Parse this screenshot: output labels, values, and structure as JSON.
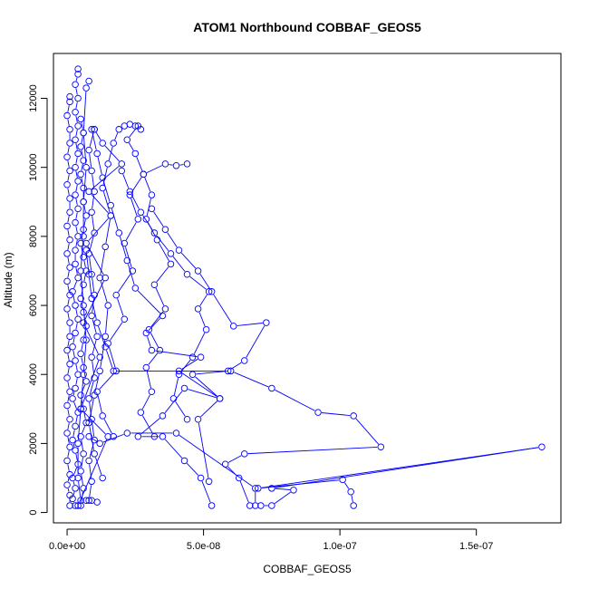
{
  "chart_data": {
    "type": "line",
    "title": "ATOM1 Northbound COBBAF_GEOS5",
    "xlabel": "COBBAF_GEOS5",
    "ylabel": "Altitude (m)",
    "xlim": [
      -5e-09,
      1.81e-07
    ],
    "ylim": [
      -300,
      13300
    ],
    "x_ticks": [
      {
        "value": 0,
        "label": "0.0e+00"
      },
      {
        "value": 5e-08,
        "label": "5.0e-08"
      },
      {
        "value": 1e-07,
        "label": "1.0e-07"
      },
      {
        "value": 1.5e-07,
        "label": "1.5e-07"
      }
    ],
    "y_ticks": [
      {
        "value": 0,
        "label": "0"
      },
      {
        "value": 2000,
        "label": "2000"
      },
      {
        "value": 4000,
        "label": "4000"
      },
      {
        "value": 6000,
        "label": "6000"
      },
      {
        "value": 8000,
        "label": "8000"
      },
      {
        "value": 10000,
        "label": "10000"
      },
      {
        "value": 12000,
        "label": "12000"
      }
    ],
    "grid": false,
    "marker": "open-circle",
    "color": "#0000ff",
    "series": [
      {
        "points": [
          [
            3e-09,
            200
          ],
          [
            2e-09,
            400
          ],
          [
            3e-09,
            700
          ],
          [
            2e-09,
            1000
          ],
          [
            4e-09,
            1400
          ],
          [
            3e-09,
            1800
          ],
          [
            2e-09,
            2100
          ],
          [
            3e-09,
            2500
          ],
          [
            4e-09,
            2900
          ],
          [
            2e-09,
            3300
          ],
          [
            3e-09,
            3600
          ],
          [
            4e-09,
            4000
          ],
          [
            3e-09,
            4400
          ],
          [
            2e-09,
            4800
          ],
          [
            3e-09,
            5200
          ],
          [
            4e-09,
            5600
          ],
          [
            3e-09,
            6000
          ],
          [
            2e-09,
            6400
          ],
          [
            4e-09,
            6800
          ],
          [
            3e-09,
            7200
          ],
          [
            3e-09,
            7600
          ],
          [
            4e-09,
            8000
          ],
          [
            3e-09,
            8400
          ],
          [
            4e-09,
            8800
          ],
          [
            3e-09,
            9200
          ],
          [
            4e-09,
            9600
          ],
          [
            3e-09,
            10000
          ],
          [
            4e-09,
            10400
          ],
          [
            3e-09,
            10800
          ],
          [
            4e-09,
            11200
          ],
          [
            3e-09,
            11600
          ],
          [
            4e-09,
            12000
          ],
          [
            3e-09,
            12400
          ],
          [
            4e-09,
            12700
          ],
          [
            4e-09,
            12850
          ]
        ]
      },
      {
        "points": [
          [
            1e-09,
            200
          ],
          [
            1e-09,
            500
          ],
          [
            0,
            800
          ],
          [
            1e-09,
            1100
          ],
          [
            0,
            1500
          ],
          [
            1e-09,
            1900
          ],
          [
            0,
            2300
          ],
          [
            1e-09,
            2700
          ],
          [
            0,
            3100
          ],
          [
            1e-09,
            3500
          ],
          [
            0,
            3900
          ],
          [
            1e-09,
            4300
          ],
          [
            0,
            4700
          ],
          [
            1e-09,
            5100
          ],
          [
            1e-09,
            5500
          ],
          [
            0,
            5900
          ],
          [
            1e-09,
            6300
          ],
          [
            0,
            6700
          ],
          [
            1e-09,
            7100
          ],
          [
            0,
            7500
          ],
          [
            1e-09,
            7900
          ],
          [
            0,
            8300
          ],
          [
            1e-09,
            8700
          ],
          [
            1e-09,
            9100
          ],
          [
            0,
            9500
          ],
          [
            1e-09,
            9900
          ],
          [
            0,
            10300
          ],
          [
            1e-09,
            10700
          ],
          [
            1e-09,
            11100
          ],
          [
            0,
            11500
          ],
          [
            1e-09,
            11900
          ],
          [
            1e-09,
            12050
          ]
        ]
      },
      {
        "points": [
          [
            5e-09,
            200
          ],
          [
            6e-09,
            700
          ],
          [
            5e-09,
            1200
          ],
          [
            6e-09,
            1700
          ],
          [
            5e-09,
            2200
          ],
          [
            7e-09,
            2600
          ],
          [
            6e-09,
            3000
          ],
          [
            5e-09,
            3400
          ],
          [
            7e-09,
            3800
          ],
          [
            6e-09,
            4200
          ],
          [
            5e-09,
            4600
          ],
          [
            6e-09,
            5000
          ],
          [
            7e-09,
            5400
          ],
          [
            6e-09,
            5800
          ],
          [
            5e-09,
            6200
          ],
          [
            6e-09,
            6600
          ],
          [
            7e-09,
            7000
          ],
          [
            6e-09,
            7400
          ],
          [
            5e-09,
            7800
          ],
          [
            6e-09,
            8200
          ],
          [
            7e-09,
            8600
          ],
          [
            6e-09,
            9000
          ],
          [
            6e-09,
            9400
          ],
          [
            5e-09,
            9800
          ],
          [
            6e-09,
            10200
          ],
          [
            5e-09,
            10600
          ],
          [
            6e-09,
            11000
          ],
          [
            5e-09,
            11400
          ]
        ]
      },
      {
        "points": [
          [
            8e-09,
            350
          ],
          [
            9e-09,
            900
          ],
          [
            8e-09,
            1500
          ],
          [
            1e-08,
            2100
          ],
          [
            9e-09,
            2700
          ],
          [
            8e-09,
            3300
          ],
          [
            1e-08,
            3900
          ],
          [
            9e-09,
            4500
          ],
          [
            1.1e-08,
            5100
          ],
          [
            9e-09,
            5700
          ],
          [
            1e-08,
            6300
          ],
          [
            9e-09,
            6900
          ],
          [
            8e-09,
            7500
          ],
          [
            1e-08,
            8100
          ],
          [
            9e-09,
            8700
          ],
          [
            1e-08,
            9300
          ],
          [
            9e-09,
            9900
          ],
          [
            8e-09,
            10500
          ],
          [
            1e-08,
            11100
          ]
        ]
      },
      {
        "points": [
          [
            4e-09,
            200
          ],
          [
            1.5e-08,
            2200
          ],
          [
            5e-09,
            3000
          ],
          [
            1.2e-08,
            4500
          ],
          [
            6e-09,
            5500
          ],
          [
            1.4e-08,
            6800
          ],
          [
            7e-09,
            7800
          ],
          [
            1.6e-08,
            8600
          ],
          [
            8e-09,
            9300
          ],
          [
            2e-08,
            10100
          ],
          [
            1.3e-08,
            10700
          ],
          [
            1e-08,
            11100
          ]
        ]
      },
      {
        "points": [
          [
            1.7e-08,
            2200
          ],
          [
            1.3e-08,
            2800
          ],
          [
            1.1e-08,
            3500
          ],
          [
            1.8e-08,
            4100
          ],
          [
            1.5e-08,
            4900
          ],
          [
            2.1e-08,
            5600
          ],
          [
            1.8e-08,
            6300
          ],
          [
            2.4e-08,
            7000
          ],
          [
            2.1e-08,
            7800
          ],
          [
            2.6e-08,
            8500
          ],
          [
            2.3e-08,
            9200
          ],
          [
            2.8e-08,
            9800
          ],
          [
            2.5e-08,
            10400
          ],
          [
            2.2e-08,
            10800
          ],
          [
            2.6e-08,
            11200
          ]
        ]
      },
      {
        "points": [
          [
            3.2e-08,
            2200
          ],
          [
            2.7e-08,
            2900
          ],
          [
            3.1e-08,
            3500
          ],
          [
            2.9e-08,
            4200
          ],
          [
            3.4e-08,
            4700
          ],
          [
            3e-08,
            5300
          ],
          [
            3.6e-08,
            5900
          ],
          [
            3.2e-08,
            6600
          ],
          [
            3.8e-08,
            7200
          ],
          [
            3.3e-08,
            7900
          ],
          [
            2.9e-08,
            8500
          ],
          [
            3.1e-08,
            9200
          ],
          [
            2.8e-08,
            9800
          ],
          [
            3.6e-08,
            10100
          ],
          [
            4e-08,
            10050
          ],
          [
            4.4e-08,
            10100
          ]
        ]
      },
      {
        "points": [
          [
            4.4e-08,
            2700
          ],
          [
            3.9e-08,
            3300
          ],
          [
            4.1e-08,
            4000
          ],
          [
            4.6e-08,
            4500
          ],
          [
            5.1e-08,
            5300
          ],
          [
            4.8e-08,
            5900
          ],
          [
            5.2e-08,
            6400
          ],
          [
            4.4e-08,
            6900
          ],
          [
            3.8e-08,
            7500
          ],
          [
            3.2e-08,
            8100
          ],
          [
            2.7e-08,
            8700
          ],
          [
            2.3e-08,
            9300
          ],
          [
            2e-08,
            9900
          ]
        ]
      },
      {
        "points": [
          [
            5.3e-08,
            200
          ],
          [
            4.9e-08,
            1000
          ],
          [
            4.3e-08,
            1500
          ],
          [
            3.5e-08,
            2200
          ],
          [
            2.6e-08,
            2200
          ],
          [
            3.5e-08,
            2800
          ],
          [
            4.3e-08,
            3600
          ],
          [
            5.6e-08,
            3300
          ],
          [
            4.6e-08,
            4000
          ],
          [
            5.9e-08,
            4100
          ],
          [
            6.5e-08,
            4400
          ],
          [
            7.3e-08,
            5500
          ],
          [
            6.1e-08,
            5400
          ],
          [
            5.3e-08,
            6400
          ],
          [
            4.8e-08,
            7000
          ],
          [
            4.1e-08,
            7600
          ],
          [
            3.6e-08,
            8200
          ],
          [
            3.1e-08,
            8800
          ]
        ]
      },
      {
        "points": [
          [
            5.2e-08,
            900
          ],
          [
            4.8e-08,
            2700
          ],
          [
            5.6e-08,
            3300
          ],
          [
            4.1e-08,
            4100
          ],
          [
            4.9e-08,
            4500
          ],
          [
            3.1e-08,
            4700
          ],
          [
            2.9e-08,
            5200
          ],
          [
            3.5e-08,
            5700
          ],
          [
            2.5e-08,
            6500
          ],
          [
            2.2e-08,
            7300
          ],
          [
            1.9e-08,
            8100
          ],
          [
            1.6e-08,
            8900
          ],
          [
            1.3e-08,
            9700
          ],
          [
            1.1e-08,
            10400
          ],
          [
            9e-09,
            11100
          ]
        ]
      },
      {
        "points": [
          [
            6.7e-08,
            200
          ],
          [
            6.3e-08,
            1000
          ],
          [
            5.8e-08,
            1400
          ],
          [
            6.5e-08,
            1700
          ],
          [
            1.15e-07,
            1900
          ],
          [
            1.05e-07,
            2800
          ],
          [
            9.2e-08,
            2900
          ],
          [
            7.5e-08,
            3600
          ],
          [
            6e-08,
            4100
          ],
          [
            1.7e-08,
            4100
          ],
          [
            1.4e-08,
            4800
          ],
          [
            1.1e-08,
            5500
          ],
          [
            9e-09,
            6200
          ],
          [
            8e-09,
            6900
          ],
          [
            7e-09,
            7600
          ]
        ]
      },
      {
        "points": [
          [
            1.05e-07,
            200
          ],
          [
            1.04e-07,
            600
          ],
          [
            1.01e-07,
            950
          ],
          [
            7e-08,
            700
          ],
          [
            1.74e-07,
            1900
          ],
          [
            7.5e-08,
            700
          ],
          [
            8.3e-08,
            650
          ],
          [
            7.5e-08,
            200
          ],
          [
            7.1e-08,
            200
          ],
          [
            6.9e-08,
            200
          ],
          [
            6.9e-08,
            700
          ],
          [
            4e-08,
            2300
          ],
          [
            2.2e-08,
            2300
          ],
          [
            1.2e-08,
            2000
          ],
          [
            8e-09,
            2200
          ]
        ]
      },
      {
        "points": [
          [
            1.3e-08,
            1000
          ],
          [
            1e-08,
            1700
          ],
          [
            8e-09,
            2600
          ],
          [
            1e-08,
            3400
          ],
          [
            1.2e-08,
            4100
          ],
          [
            1.4e-08,
            5100
          ],
          [
            1.5e-08,
            6000
          ],
          [
            1.2e-08,
            6800
          ],
          [
            1.4e-08,
            7700
          ],
          [
            1.6e-08,
            8600
          ],
          [
            1.3e-08,
            9400
          ],
          [
            1.5e-08,
            10100
          ],
          [
            1.7e-08,
            10700
          ],
          [
            1.9e-08,
            11100
          ],
          [
            2.1e-08,
            11200
          ],
          [
            2.3e-08,
            11250
          ],
          [
            2.5e-08,
            11200
          ],
          [
            2.7e-08,
            11100
          ]
        ]
      },
      {
        "points": [
          [
            1.1e-08,
            300
          ],
          [
            9e-09,
            350
          ],
          [
            7e-09,
            350
          ],
          [
            5e-09,
            350
          ],
          [
            4e-09,
            1000
          ],
          [
            4e-09,
            2000
          ],
          [
            5e-09,
            3000
          ],
          [
            6e-09,
            4000
          ],
          [
            7e-09,
            5000
          ],
          [
            6e-09,
            6000
          ],
          [
            5e-09,
            7000
          ],
          [
            6e-09,
            8000
          ],
          [
            6e-09,
            9000
          ],
          [
            7e-09,
            10000
          ],
          [
            6e-09,
            11000
          ],
          [
            7e-09,
            12300
          ],
          [
            8e-09,
            12500
          ]
        ]
      }
    ]
  }
}
